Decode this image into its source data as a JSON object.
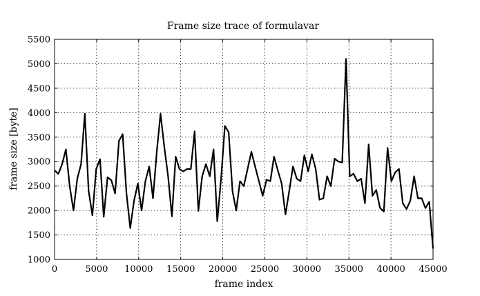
{
  "chart_data": {
    "type": "line",
    "title": "Frame size trace of formulavar",
    "xlabel": "frame index",
    "ylabel": "frame size [byte]",
    "xlim": [
      0,
      45000
    ],
    "ylim": [
      1000,
      5500
    ],
    "xticks": [
      0,
      5000,
      10000,
      15000,
      20000,
      25000,
      30000,
      35000,
      40000,
      45000
    ],
    "yticks": [
      1000,
      1500,
      2000,
      2500,
      3000,
      3500,
      4000,
      4500,
      5000,
      5500
    ],
    "grid": true,
    "series": [
      {
        "x": [
          0,
          450,
          900,
          1350,
          1800,
          2250,
          2700,
          3150,
          3600,
          4050,
          4500,
          4950,
          5400,
          5850,
          6300,
          6750,
          7200,
          7650,
          8100,
          8550,
          9000,
          9450,
          9900,
          10350,
          10800,
          11250,
          11700,
          12150,
          12600,
          13050,
          13500,
          13950,
          14400,
          14850,
          15300,
          15750,
          16200,
          16650,
          17100,
          17550,
          18000,
          18450,
          18900,
          19350,
          19800,
          20250,
          20700,
          21150,
          21600,
          22050,
          22500,
          22950,
          23400,
          23850,
          24300,
          24750,
          25200,
          25650,
          26100,
          26550,
          27000,
          27450,
          27900,
          28350,
          28800,
          29250,
          29700,
          30150,
          30600,
          31050,
          31500,
          31950,
          32400,
          32850,
          33300,
          33750,
          34200,
          34650,
          35100,
          35550,
          36000,
          36450,
          36900,
          37350,
          37800,
          38250,
          38700,
          39150,
          39600,
          40050,
          40500,
          40950,
          41400,
          41850,
          42300,
          42750,
          43200,
          43650,
          44100,
          44550,
          45000
        ],
        "values": [
          2820,
          2750,
          2950,
          3250,
          2500,
          2000,
          2650,
          2950,
          3980,
          2400,
          1900,
          2850,
          3050,
          1870,
          2680,
          2620,
          2350,
          3420,
          3560,
          2350,
          1640,
          2200,
          2550,
          2000,
          2600,
          2900,
          2250,
          3200,
          3980,
          3300,
          2700,
          1880,
          3100,
          2850,
          2800,
          2850,
          2850,
          3620,
          1990,
          2700,
          2950,
          2700,
          3250,
          1780,
          2650,
          3730,
          3600,
          2400,
          2000,
          2600,
          2500,
          2850,
          3200,
          2900,
          2600,
          2300,
          2630,
          2600,
          3100,
          2820,
          2550,
          1920,
          2400,
          2900,
          2650,
          2600,
          3130,
          2800,
          3150,
          2850,
          2220,
          2250,
          2700,
          2500,
          3060,
          3000,
          2980,
          5100,
          2700,
          2750,
          2600,
          2650,
          2150,
          3350,
          2300,
          2420,
          2050,
          1980,
          3280,
          2600,
          2780,
          2850,
          2150,
          2030,
          2200,
          2700,
          2250,
          2250,
          2050,
          2180,
          1220
        ]
      }
    ]
  }
}
